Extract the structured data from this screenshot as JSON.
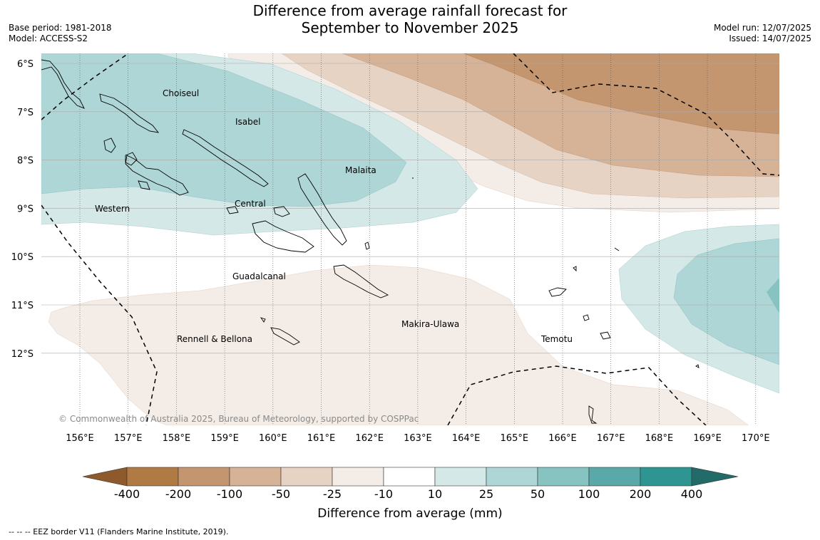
{
  "title": {
    "line1": "Difference from average rainfall forecast for",
    "line2": "September to November 2025"
  },
  "info_left": {
    "base_period": "Base period: 1981-2018",
    "model": "Model: ACCESS-S2"
  },
  "info_right": {
    "model_run": "Model run: 12/07/2025",
    "issued": "Issued: 14/07/2025"
  },
  "map": {
    "lon_labels": [
      "156°E",
      "157°E",
      "158°E",
      "159°E",
      "160°E",
      "161°E",
      "162°E",
      "163°E",
      "164°E",
      "165°E",
      "166°E",
      "167°E",
      "168°E",
      "169°E",
      "170°E"
    ],
    "lat_labels": [
      "6°S",
      "7°S",
      "8°S",
      "9°S",
      "10°S",
      "11°S",
      "12°S"
    ],
    "provinces": [
      "Choiseul",
      "Isabel",
      "Malaita",
      "Central",
      "Western",
      "Guadalcanal",
      "Makira-Ulawa",
      "Rennell & Bellona",
      "Temotu"
    ],
    "copyright": "© Commonwealth of Australia 2025, Bureau of Meteorology, supported by COSPPac"
  },
  "colorbar": {
    "label": "Difference from average (mm)",
    "ticks": [
      "-400",
      "-200",
      "-100",
      "-50",
      "-25",
      "-10",
      "10",
      "25",
      "50",
      "100",
      "200",
      "400"
    ],
    "colors": [
      "#8f5a2b",
      "#b07a45",
      "#c49670",
      "#d6b396",
      "#e6d3c4",
      "#f4ece6",
      "#ffffff",
      "#d4e8e7",
      "#aed6d6",
      "#87c3c1",
      "#5aa9a8",
      "#2f9592",
      "#236b69"
    ]
  },
  "footer": {
    "eez_note": "--  --  -- EEZ border V11 (Flanders Marine Institute, 2019)."
  }
}
